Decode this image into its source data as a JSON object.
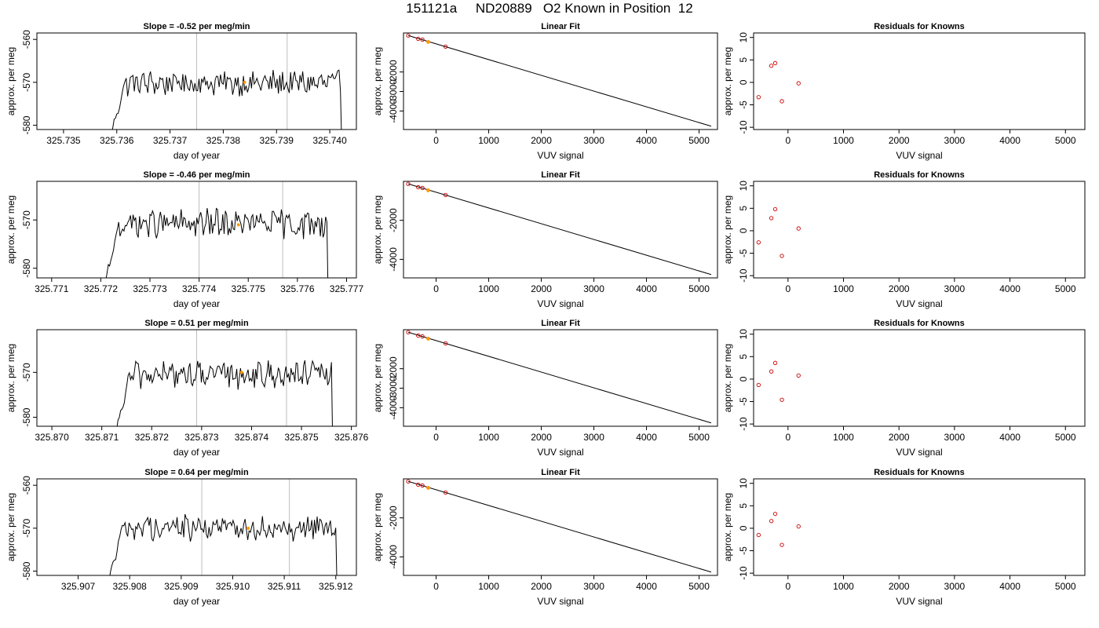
{
  "suptitle": "151121a     ND20889   O2 Known in Position  12",
  "colors": {
    "line": "#000000",
    "axis": "#000000",
    "vline": "#bebebe",
    "marker_known": "#cc0000",
    "marker_highlight": "#ff9900"
  },
  "labels": {
    "ts_xlabel": "day of year",
    "ts_ylabel": "approx. per meg",
    "fit_title": "Linear Fit",
    "fit_xlabel": "VUV signal",
    "fit_ylabel": "approx. per meg",
    "res_title": "Residuals for Knowns",
    "res_xlabel": "VUV signal",
    "res_ylabel": "approx. per meg"
  },
  "chart_data": [
    {
      "panel": "timeseries",
      "type": "line",
      "title": "Slope =  -0.52  per meg/min",
      "xlabel": "day of year",
      "ylabel": "approx. per meg",
      "xlim": [
        325.7345,
        325.7405
      ],
      "ylim": [
        -581,
        -558.5
      ],
      "xticks": [
        "325.735",
        "325.736",
        "325.737",
        "325.738",
        "325.739",
        "325.740"
      ],
      "xtick_vals": [
        325.735,
        325.736,
        325.737,
        325.738,
        325.739,
        325.74
      ],
      "yticks": [
        "-580",
        "-570",
        "-560"
      ],
      "ytick_vals": [
        -580,
        -570,
        -560
      ],
      "vlines": [
        325.7375,
        325.7392
      ],
      "start": 325.7359,
      "end": 325.7402,
      "level": -570.2,
      "highlight": {
        "x": 325.7384,
        "y": -570
      }
    },
    {
      "panel": "linear_fit",
      "type": "scatter",
      "title": "Linear Fit",
      "xlabel": "VUV signal",
      "ylabel": "approx. per meg",
      "xlim": [
        -620,
        5350
      ],
      "ylim": [
        -4950,
        0
      ],
      "xticks": [
        "0",
        "1000",
        "2000",
        "3000",
        "4000",
        "5000"
      ],
      "xtick_vals": [
        0,
        1000,
        2000,
        3000,
        4000,
        5000
      ],
      "yticks": [
        "-4000",
        "-3000",
        "-2000"
      ],
      "ytick_vals": [
        -4000,
        -3000,
        -2000
      ],
      "line": {
        "x": [
          -530,
          5230
        ],
        "y": [
          -130,
          -4780
        ]
      },
      "points": [
        {
          "x": -530,
          "y": -130
        },
        {
          "x": -340,
          "y": -300
        },
        {
          "x": -260,
          "y": -340
        },
        {
          "x": 180,
          "y": -700
        }
      ],
      "highlight": {
        "x": -150,
        "y": -460
      }
    },
    {
      "panel": "residuals",
      "type": "scatter",
      "title": "Residuals for Knowns",
      "xlabel": "VUV signal",
      "ylabel": "approx. per meg",
      "xlim": [
        -620,
        5350
      ],
      "ylim": [
        -10.5,
        11
      ],
      "xticks": [
        "0",
        "1000",
        "2000",
        "3000",
        "4000",
        "5000"
      ],
      "xtick_vals": [
        0,
        1000,
        2000,
        3000,
        4000,
        5000
      ],
      "yticks": [
        "-10",
        "-5",
        "0",
        "5",
        "10"
      ],
      "ytick_vals": [
        -10,
        -5,
        0,
        5,
        10
      ],
      "points": [
        {
          "x": -530,
          "y": -3.3
        },
        {
          "x": -300,
          "y": 3.7
        },
        {
          "x": -230,
          "y": 4.3
        },
        {
          "x": -110,
          "y": -4.2
        },
        {
          "x": 190,
          "y": -0.2
        }
      ]
    },
    {
      "panel": "timeseries",
      "type": "line",
      "title": "Slope =  -0.46  per meg/min",
      "xlabel": "day of year",
      "ylabel": "approx. per meg",
      "xlim": [
        325.7707,
        325.7772
      ],
      "ylim": [
        -582,
        -562
      ],
      "xticks": [
        "325.771",
        "325.772",
        "325.773",
        "325.774",
        "325.775",
        "325.776",
        "325.777"
      ],
      "xtick_vals": [
        325.771,
        325.772,
        325.773,
        325.774,
        325.775,
        325.776,
        325.777
      ],
      "yticks": [
        "-580",
        "-570"
      ],
      "ytick_vals": [
        -580,
        -570
      ],
      "vlines": [
        325.774,
        325.7757
      ],
      "start": 325.7721,
      "end": 325.7766,
      "level": -570.8,
      "highlight": {
        "x": 325.7748,
        "y": -571
      }
    },
    {
      "panel": "linear_fit",
      "type": "scatter",
      "title": "Linear Fit",
      "xlabel": "VUV signal",
      "ylabel": "approx. per meg",
      "xlim": [
        -620,
        5350
      ],
      "ylim": [
        -4950,
        0
      ],
      "xticks": [
        "0",
        "1000",
        "2000",
        "3000",
        "4000",
        "5000"
      ],
      "xtick_vals": [
        0,
        1000,
        2000,
        3000,
        4000,
        5000
      ],
      "yticks": [
        "-4000",
        "-2000"
      ],
      "ytick_vals": [
        -4000,
        -2000
      ],
      "line": {
        "x": [
          -530,
          5230
        ],
        "y": [
          -130,
          -4780
        ]
      },
      "points": [
        {
          "x": -530,
          "y": -130
        },
        {
          "x": -340,
          "y": -300
        },
        {
          "x": -260,
          "y": -340
        },
        {
          "x": 180,
          "y": -700
        }
      ],
      "highlight": {
        "x": -150,
        "y": -460
      }
    },
    {
      "panel": "residuals",
      "type": "scatter",
      "title": "Residuals for Knowns",
      "xlabel": "VUV signal",
      "ylabel": "approx. per meg",
      "xlim": [
        -620,
        5350
      ],
      "ylim": [
        -10.5,
        11
      ],
      "xticks": [
        "0",
        "1000",
        "2000",
        "3000",
        "4000",
        "5000"
      ],
      "xtick_vals": [
        0,
        1000,
        2000,
        3000,
        4000,
        5000
      ],
      "yticks": [
        "-10",
        "-5",
        "0",
        "5",
        "10"
      ],
      "ytick_vals": [
        -10,
        -5,
        0,
        5,
        10
      ],
      "points": [
        {
          "x": -530,
          "y": -2.6
        },
        {
          "x": -300,
          "y": 2.8
        },
        {
          "x": -230,
          "y": 4.8
        },
        {
          "x": -110,
          "y": -5.6
        },
        {
          "x": 190,
          "y": 0.5
        }
      ]
    },
    {
      "panel": "timeseries",
      "type": "line",
      "title": "Slope =  0.51  per meg/min",
      "xlabel": "day of year",
      "ylabel": "approx. per meg",
      "xlim": [
        325.8697,
        325.8761
      ],
      "ylim": [
        -582,
        -560.5
      ],
      "xticks": [
        "325.870",
        "325.871",
        "325.872",
        "325.873",
        "325.874",
        "325.875",
        "325.876"
      ],
      "xtick_vals": [
        325.87,
        325.871,
        325.872,
        325.873,
        325.874,
        325.875,
        325.876
      ],
      "yticks": [
        "-580",
        "-570"
      ],
      "ytick_vals": [
        -580,
        -570
      ],
      "vlines": [
        325.8729,
        325.8747
      ],
      "start": 325.8713,
      "end": 325.8756,
      "level": -570.5,
      "highlight": {
        "x": 325.8738,
        "y": -570
      }
    },
    {
      "panel": "linear_fit",
      "type": "scatter",
      "title": "Linear Fit",
      "xlabel": "VUV signal",
      "ylabel": "approx. per meg",
      "xlim": [
        -620,
        5350
      ],
      "ylim": [
        -4950,
        0
      ],
      "xticks": [
        "0",
        "1000",
        "2000",
        "3000",
        "4000",
        "5000"
      ],
      "xtick_vals": [
        0,
        1000,
        2000,
        3000,
        4000,
        5000
      ],
      "yticks": [
        "-4000",
        "-3000",
        "-2000"
      ],
      "ytick_vals": [
        -4000,
        -3000,
        -2000
      ],
      "line": {
        "x": [
          -530,
          5230
        ],
        "y": [
          -130,
          -4780
        ]
      },
      "points": [
        {
          "x": -530,
          "y": -130
        },
        {
          "x": -340,
          "y": -300
        },
        {
          "x": -260,
          "y": -340
        },
        {
          "x": 180,
          "y": -700
        }
      ],
      "highlight": {
        "x": -150,
        "y": -460
      }
    },
    {
      "panel": "residuals",
      "type": "scatter",
      "title": "Residuals for Knowns",
      "xlabel": "VUV signal",
      "ylabel": "approx. per meg",
      "xlim": [
        -620,
        5350
      ],
      "ylim": [
        -10.5,
        11
      ],
      "xticks": [
        "0",
        "1000",
        "2000",
        "3000",
        "4000",
        "5000"
      ],
      "xtick_vals": [
        0,
        1000,
        2000,
        3000,
        4000,
        5000
      ],
      "yticks": [
        "-10",
        "-5",
        "0",
        "5",
        "10"
      ],
      "ytick_vals": [
        -10,
        -5,
        0,
        5,
        10
      ],
      "points": [
        {
          "x": -530,
          "y": -1.3
        },
        {
          "x": -300,
          "y": 1.7
        },
        {
          "x": -230,
          "y": 3.6
        },
        {
          "x": -110,
          "y": -4.6
        },
        {
          "x": 190,
          "y": 0.8
        }
      ]
    },
    {
      "panel": "timeseries",
      "type": "line",
      "title": "Slope =  0.64  per meg/min",
      "xlabel": "day of year",
      "ylabel": "approx. per meg",
      "xlim": [
        325.9062,
        325.9124
      ],
      "ylim": [
        -581,
        -558.5
      ],
      "xticks": [
        "325.907",
        "325.908",
        "325.909",
        "325.910",
        "325.911",
        "325.912"
      ],
      "xtick_vals": [
        325.907,
        325.908,
        325.909,
        325.91,
        325.911,
        325.912
      ],
      "yticks": [
        "-580",
        "-570",
        "-560"
      ],
      "ytick_vals": [
        -580,
        -570,
        -560
      ],
      "vlines": [
        325.9094,
        325.9111
      ],
      "start": 325.9076,
      "end": 325.912,
      "level": -569.8,
      "highlight": {
        "x": 325.9103,
        "y": -570
      }
    },
    {
      "panel": "linear_fit",
      "type": "scatter",
      "title": "Linear Fit",
      "xlabel": "VUV signal",
      "ylabel": "approx. per meg",
      "xlim": [
        -620,
        5350
      ],
      "ylim": [
        -4950,
        0
      ],
      "xticks": [
        "0",
        "1000",
        "2000",
        "3000",
        "4000",
        "5000"
      ],
      "xtick_vals": [
        0,
        1000,
        2000,
        3000,
        4000,
        5000
      ],
      "yticks": [
        "-4000",
        "-2000"
      ],
      "ytick_vals": [
        -4000,
        -2000
      ],
      "line": {
        "x": [
          -530,
          5230
        ],
        "y": [
          -130,
          -4780
        ]
      },
      "points": [
        {
          "x": -530,
          "y": -130
        },
        {
          "x": -340,
          "y": -300
        },
        {
          "x": -260,
          "y": -340
        },
        {
          "x": 180,
          "y": -700
        }
      ],
      "highlight": {
        "x": -150,
        "y": -460
      }
    },
    {
      "panel": "residuals",
      "type": "scatter",
      "title": "Residuals for Knowns",
      "xlabel": "VUV signal",
      "ylabel": "approx. per meg",
      "xlim": [
        -620,
        5350
      ],
      "ylim": [
        -10.5,
        11
      ],
      "xticks": [
        "0",
        "1000",
        "2000",
        "3000",
        "4000",
        "5000"
      ],
      "xtick_vals": [
        0,
        1000,
        2000,
        3000,
        4000,
        5000
      ],
      "yticks": [
        "-10",
        "-5",
        "0",
        "5",
        "10"
      ],
      "ytick_vals": [
        -10,
        -5,
        0,
        5,
        10
      ],
      "points": [
        {
          "x": -530,
          "y": -1.5
        },
        {
          "x": -300,
          "y": 1.6
        },
        {
          "x": -230,
          "y": 3.2
        },
        {
          "x": -110,
          "y": -3.7
        },
        {
          "x": 190,
          "y": 0.4
        }
      ]
    }
  ]
}
